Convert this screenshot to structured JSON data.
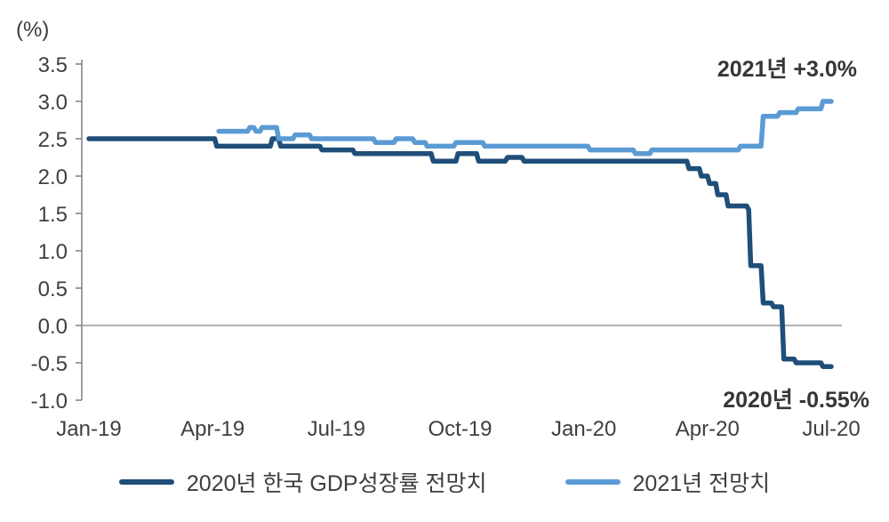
{
  "chart_data": {
    "type": "line",
    "title": "",
    "unit_label": "(%)",
    "xlabel": "",
    "ylabel": "(%)",
    "xlim": [
      0,
      18
    ],
    "ylim": [
      -1.0,
      3.5
    ],
    "yticks": [
      3.5,
      3.0,
      2.5,
      2.0,
      1.5,
      1.0,
      0.5,
      0.0,
      -0.5,
      -1.0
    ],
    "xticks": [
      0,
      3,
      6,
      9,
      12,
      15,
      18
    ],
    "xtick_labels": [
      "Jan-19",
      "Apr-19",
      "Jul-19",
      "Oct-19",
      "Jan-20",
      "Apr-20",
      "Jul-20"
    ],
    "grid": false,
    "legend_position": "bottom",
    "series": [
      {
        "name": "2020년 한국 GDP성장률 전망치",
        "color": "#1f4e79",
        "points": [
          [
            0,
            2.5
          ],
          [
            3.05,
            2.5
          ],
          [
            3.1,
            2.4
          ],
          [
            4.4,
            2.4
          ],
          [
            4.45,
            2.5
          ],
          [
            4.6,
            2.5
          ],
          [
            4.65,
            2.4
          ],
          [
            5.6,
            2.4
          ],
          [
            5.65,
            2.35
          ],
          [
            6.4,
            2.35
          ],
          [
            6.45,
            2.3
          ],
          [
            8.3,
            2.3
          ],
          [
            8.35,
            2.2
          ],
          [
            8.9,
            2.2
          ],
          [
            8.95,
            2.3
          ],
          [
            9.4,
            2.3
          ],
          [
            9.45,
            2.2
          ],
          [
            10.1,
            2.2
          ],
          [
            10.15,
            2.25
          ],
          [
            10.5,
            2.25
          ],
          [
            10.55,
            2.2
          ],
          [
            14.5,
            2.2
          ],
          [
            14.55,
            2.1
          ],
          [
            14.8,
            2.1
          ],
          [
            14.85,
            2.0
          ],
          [
            15.0,
            2.0
          ],
          [
            15.05,
            1.9
          ],
          [
            15.2,
            1.9
          ],
          [
            15.25,
            1.75
          ],
          [
            15.45,
            1.75
          ],
          [
            15.5,
            1.6
          ],
          [
            15.95,
            1.6
          ],
          [
            16.0,
            1.55
          ],
          [
            16.05,
            0.8
          ],
          [
            16.3,
            0.8
          ],
          [
            16.35,
            0.3
          ],
          [
            16.55,
            0.3
          ],
          [
            16.6,
            0.25
          ],
          [
            16.8,
            0.25
          ],
          [
            16.85,
            -0.45
          ],
          [
            17.1,
            -0.45
          ],
          [
            17.15,
            -0.5
          ],
          [
            17.75,
            -0.5
          ],
          [
            17.8,
            -0.55
          ],
          [
            18,
            -0.55
          ]
        ],
        "final_value": -0.55
      },
      {
        "name": "2021년 전망치",
        "color": "#5b9bd5",
        "points": [
          [
            3.15,
            2.6
          ],
          [
            3.85,
            2.6
          ],
          [
            3.9,
            2.65
          ],
          [
            4.0,
            2.65
          ],
          [
            4.05,
            2.6
          ],
          [
            4.15,
            2.6
          ],
          [
            4.2,
            2.65
          ],
          [
            4.55,
            2.65
          ],
          [
            4.6,
            2.5
          ],
          [
            4.95,
            2.5
          ],
          [
            5.0,
            2.55
          ],
          [
            5.35,
            2.55
          ],
          [
            5.4,
            2.5
          ],
          [
            6.9,
            2.5
          ],
          [
            6.95,
            2.45
          ],
          [
            7.4,
            2.45
          ],
          [
            7.45,
            2.5
          ],
          [
            7.85,
            2.5
          ],
          [
            7.9,
            2.45
          ],
          [
            8.15,
            2.45
          ],
          [
            8.2,
            2.4
          ],
          [
            8.85,
            2.4
          ],
          [
            8.9,
            2.45
          ],
          [
            9.55,
            2.45
          ],
          [
            9.6,
            2.4
          ],
          [
            12.1,
            2.4
          ],
          [
            12.15,
            2.35
          ],
          [
            13.2,
            2.35
          ],
          [
            13.25,
            2.3
          ],
          [
            13.6,
            2.3
          ],
          [
            13.65,
            2.35
          ],
          [
            15.75,
            2.35
          ],
          [
            15.8,
            2.4
          ],
          [
            16.3,
            2.4
          ],
          [
            16.35,
            2.8
          ],
          [
            16.7,
            2.8
          ],
          [
            16.75,
            2.85
          ],
          [
            17.15,
            2.85
          ],
          [
            17.2,
            2.9
          ],
          [
            17.75,
            2.9
          ],
          [
            17.8,
            3.0
          ],
          [
            18,
            3.0
          ]
        ],
        "final_value": 3.0
      }
    ],
    "annotations": [
      {
        "text": "2021년 +3.0%",
        "position": "top-right"
      },
      {
        "text": "2020년 -0.55%",
        "position": "bottom-right"
      }
    ]
  }
}
